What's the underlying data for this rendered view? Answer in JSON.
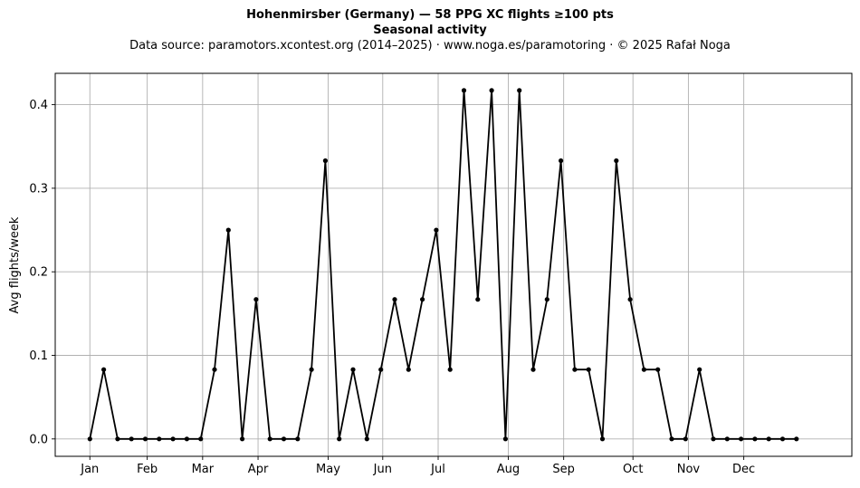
{
  "chart_data": {
    "type": "line",
    "title": "Hohenmirsber (Germany)  —  58 PPG XC flights ≥100 pts",
    "subtitle": "Seasonal activity",
    "source": "Data source: paramotors.xcontest.org (2014–2025)  ·  www.noga.es/paramotoring  ·  © 2025 Rafał Noga",
    "xlabel": "",
    "ylabel": "Avg flights/week",
    "x": [
      1,
      2,
      3,
      4,
      5,
      6,
      7,
      8,
      9,
      10,
      11,
      12,
      13,
      14,
      15,
      16,
      17,
      18,
      19,
      20,
      21,
      22,
      23,
      24,
      25,
      26,
      27,
      28,
      29,
      30,
      31,
      32,
      33,
      34,
      35,
      36,
      37,
      38,
      39,
      40,
      41,
      42,
      43,
      44,
      45,
      46,
      47,
      48,
      49,
      50,
      51,
      52
    ],
    "series": [
      {
        "values": [
          0,
          0.083,
          0,
          0,
          0,
          0,
          0,
          0,
          0,
          0.083,
          0.25,
          0,
          0.167,
          0,
          0,
          0,
          0.083,
          0.333,
          0,
          0.083,
          0,
          0.083,
          0.167,
          0.083,
          0.167,
          0.25,
          0.083,
          0.417,
          0.167,
          0.417,
          0,
          0.417,
          0.083,
          0.167,
          0.333,
          0.083,
          0.083,
          0,
          0.333,
          0.167,
          0.083,
          0.083,
          0,
          0,
          0.083,
          0,
          0,
          0,
          0,
          0,
          0,
          0
        ],
        "color": "#000000"
      }
    ],
    "xticks": [
      {
        "label": "Jan",
        "week": 1
      },
      {
        "label": "Feb",
        "week": 5.14
      },
      {
        "label": "Mar",
        "week": 9.14
      },
      {
        "label": "Apr",
        "week": 13.14
      },
      {
        "label": "May",
        "week": 18.2
      },
      {
        "label": "Jun",
        "week": 22.14
      },
      {
        "label": "Jul",
        "week": 26.14
      },
      {
        "label": "Aug",
        "week": 31.2
      },
      {
        "label": "Sep",
        "week": 35.2
      },
      {
        "label": "Oct",
        "week": 40.2
      },
      {
        "label": "Nov",
        "week": 44.2
      },
      {
        "label": "Dec",
        "week": 48.2
      }
    ],
    "yticks": [
      "0.0",
      "0.1",
      "0.2",
      "0.3",
      "0.4"
    ],
    "xlim": [
      -1.5,
      56
    ],
    "ylim": [
      -0.0208,
      0.4375
    ],
    "grid": true,
    "legend": "none"
  }
}
